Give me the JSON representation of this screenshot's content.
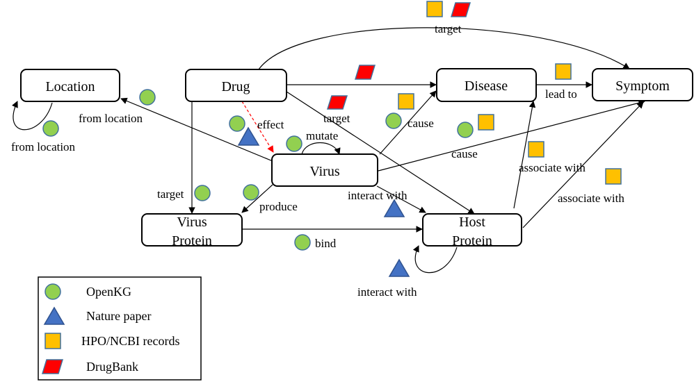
{
  "nodes": {
    "location": "Location",
    "drug": "Drug",
    "disease": "Disease",
    "symptom": "Symptom",
    "virus": "Virus",
    "virus_protein_line1": "Virus",
    "virus_protein_line2": "Protein",
    "host_protein_line1": "Host",
    "host_protein_line2": "Protein"
  },
  "edges": {
    "drug_symptom_target": "target",
    "drug_hostprotein_target": "target",
    "drug_virus_effect": "effect",
    "virus_mutate": "mutate",
    "virus_disease_cause": "cause",
    "virus_symptom_cause": "cause",
    "disease_symptom_lead_to": "lead to",
    "virus_location_from": "from location",
    "location_self_from": "from location",
    "drug_virusprotein_target": "target",
    "virus_virusprotein_produce": "produce",
    "virus_hostprotein_interact": "interact with",
    "hostprotein_disease_associate": "associate with",
    "hostprotein_symptom_associate": "associate with",
    "virusprotein_hostprotein_bind": "bind",
    "hostprotein_self_interact": "interact with"
  },
  "legend": {
    "openkg": "OpenKG",
    "nature_paper": "Nature paper",
    "hpo_ncbi": "HPO/NCBI records",
    "drugbank": "DrugBank"
  },
  "colors": {
    "openkg": "#92d050",
    "nature_paper": "#4472c4",
    "hpo_ncbi": "#ffc000",
    "drugbank": "#ff0000",
    "effect_edge": "#ff0000"
  },
  "icons": [
    "green-circle-openkg",
    "blue-triangle-nature-paper",
    "orange-square-hpo-ncbi",
    "red-parallelogram-drugbank"
  ]
}
